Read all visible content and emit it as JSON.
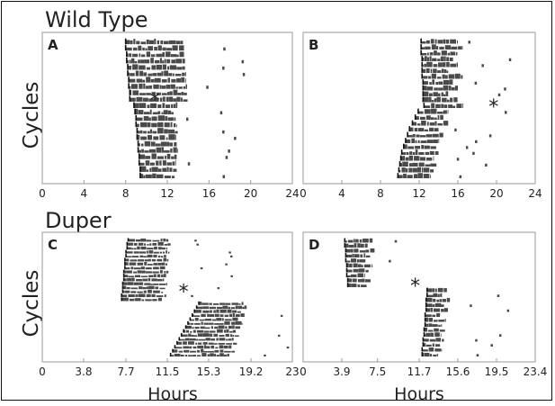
{
  "chart_data": [
    {
      "type": "scatter",
      "panel": "A",
      "group": "Wild Type",
      "ylabel": "Cycles",
      "xlabel": "",
      "xlim": [
        0,
        24
      ],
      "xticks": [
        "0",
        "4",
        "8",
        "12",
        "16",
        "20",
        "24"
      ],
      "marker": "*",
      "marker_x": 10.8,
      "marker_cycle": 9,
      "cycles": 22,
      "onsets": [
        8.0,
        8.0,
        8.1,
        8.1,
        8.2,
        8.2,
        8.3,
        8.3,
        8.4,
        8.4,
        8.8,
        8.9,
        9.0,
        9.0,
        9.1,
        9.1,
        9.2,
        9.2,
        9.3,
        9.3,
        9.4,
        9.4
      ],
      "offsets": [
        13.5,
        13.6,
        13.6,
        13.7,
        13.7,
        13.8,
        13.8,
        13.9,
        13.9,
        14.0,
        13.0,
        12.6,
        12.8,
        12.9,
        13.0,
        12.8,
        12.9,
        13.0,
        12.9,
        12.8,
        12.9,
        12.7
      ]
    },
    {
      "type": "scatter",
      "panel": "B",
      "group": "Wild Type",
      "ylabel": "",
      "xlabel": "",
      "xlim": [
        0,
        24
      ],
      "xticks": [
        "0",
        "4",
        "8",
        "12",
        "16",
        "20",
        "24"
      ],
      "marker": "*",
      "marker_x": 19.7,
      "marker_cycle": 11,
      "cycles": 24,
      "onsets": [
        12.2,
        12.2,
        12.2,
        12.3,
        12.3,
        12.3,
        12.3,
        12.4,
        12.4,
        12.4,
        12.4,
        12.5,
        11.9,
        11.6,
        11.3,
        11.0,
        10.8,
        10.6,
        10.4,
        10.2,
        10.1,
        10.0,
        9.9,
        9.8
      ],
      "offsets": [
        16.0,
        16.5,
        16.0,
        15.5,
        16.0,
        15.0,
        16.5,
        15.5,
        16.0,
        15.0,
        16.0,
        16.5,
        15.0,
        14.5,
        15.0,
        14.0,
        14.5,
        14.0,
        13.8,
        14.0,
        13.5,
        13.8,
        13.5,
        13.2
      ]
    },
    {
      "type": "scatter",
      "panel": "C",
      "group": "Duper",
      "ylabel": "Cycles",
      "xlabel": "Hours",
      "xlim": [
        0,
        23
      ],
      "xticks": [
        "0",
        "3.8",
        "7.7",
        "11.5",
        "15.3",
        "19.2",
        "23"
      ],
      "marker": "*",
      "marker_x": 13.0,
      "marker_cycle": 13,
      "cycles": 30,
      "onsets": [
        7.9,
        7.8,
        7.8,
        7.7,
        7.7,
        7.6,
        7.6,
        7.6,
        7.5,
        7.5,
        7.5,
        7.4,
        7.4,
        7.4,
        7.3,
        7.3,
        14.4,
        14.2,
        14.0,
        13.8,
        13.6,
        13.4,
        13.2,
        13.0,
        12.8,
        12.6,
        12.4,
        12.2,
        12.0,
        11.8
      ],
      "offsets": [
        11.6,
        11.8,
        11.5,
        11.7,
        11.4,
        11.6,
        11.5,
        11.3,
        11.6,
        11.4,
        11.2,
        11.5,
        11.3,
        11.1,
        11.4,
        11.0,
        18.5,
        18.8,
        18.3,
        18.6,
        18.0,
        18.4,
        18.2,
        17.8,
        18.1,
        17.6,
        17.9,
        17.4,
        17.7,
        17.2
      ]
    },
    {
      "type": "scatter",
      "panel": "D",
      "group": "Duper",
      "ylabel": "",
      "xlabel": "Hours",
      "xlim": [
        0,
        23.4
      ],
      "xticks": [
        "0",
        "3.9",
        "7.5",
        "11.7",
        "15.6",
        "19.5",
        "23.4"
      ],
      "marker": "*",
      "marker_x": 11.3,
      "marker_cycle": 9,
      "cycles": 24,
      "onsets": [
        4.2,
        4.2,
        4.3,
        4.3,
        4.3,
        4.4,
        4.4,
        4.4,
        4.5,
        4.5,
        12.5,
        12.5,
        12.4,
        12.4,
        12.4,
        12.3,
        12.3,
        12.3,
        12.2,
        12.2,
        12.1,
        12.1,
        12.0,
        12.0
      ],
      "offsets": [
        7.0,
        6.5,
        7.2,
        6.8,
        6.3,
        7.0,
        6.6,
        6.2,
        6.8,
        6.4,
        14.5,
        14.0,
        14.8,
        14.2,
        14.6,
        13.8,
        14.4,
        14.0,
        14.3,
        13.9,
        14.2,
        13.8,
        14.0,
        13.6
      ]
    }
  ],
  "labels": {
    "wild_type": "Wild Type",
    "duper": "Duper",
    "cycles_top": "Cycles",
    "cycles_bottom": "Cycles",
    "hours_left": "Hours",
    "hours_right": "Hours",
    "asterisk": "*"
  },
  "colors": {
    "bars": "#4a4a4a",
    "onset_line": "#111111",
    "axis": "#9a9a9a",
    "frame": "#111111",
    "text": "#222222"
  }
}
